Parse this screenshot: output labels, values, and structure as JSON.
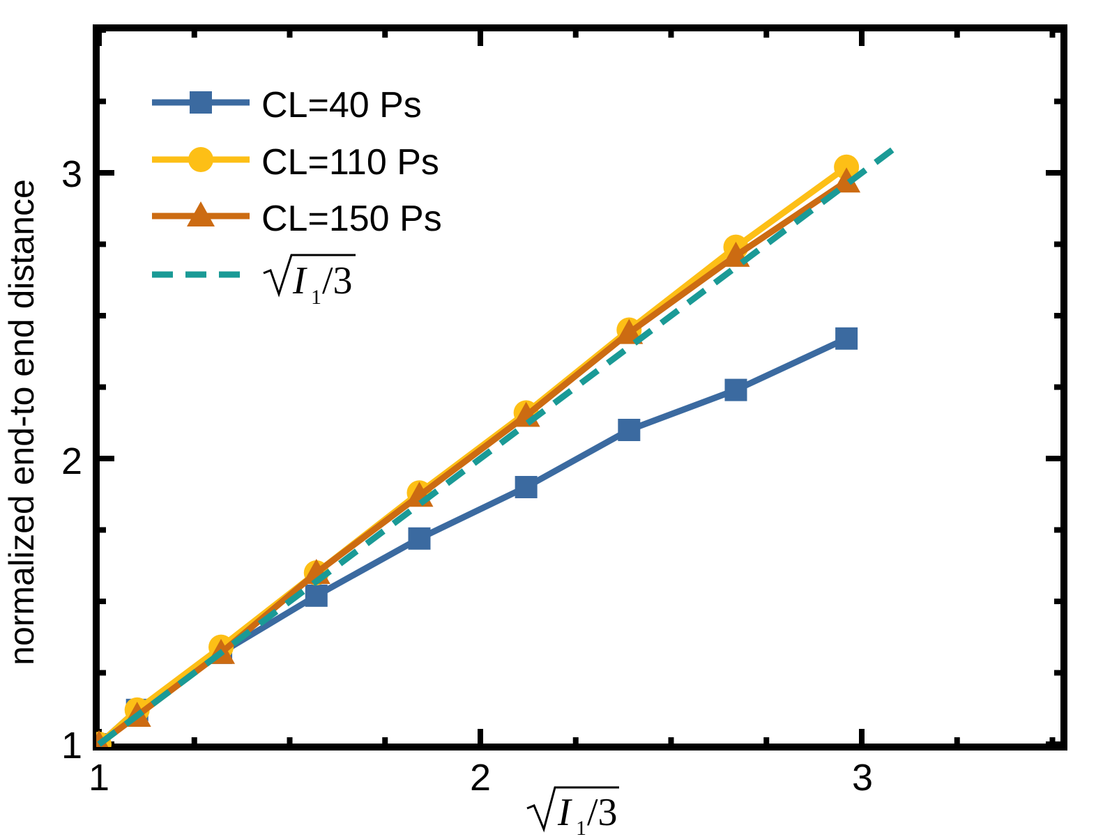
{
  "chart_data": {
    "type": "line",
    "xlabel": "√I₁/3",
    "ylabel": "normalized end-to end distance",
    "xlim": [
      1,
      3.5
    ],
    "ylim": [
      1,
      3.5
    ],
    "x_ticks": [
      "1",
      "2",
      "3"
    ],
    "y_ticks": [
      "1",
      "2",
      "3"
    ],
    "grid": false,
    "legend_position": "top-left",
    "series": [
      {
        "name": "CL=40 Ps",
        "color": "#3b6aa0",
        "marker": "square",
        "line": "solid",
        "x": [
          1.0,
          1.1,
          1.32,
          1.57,
          1.84,
          2.12,
          2.39,
          2.67,
          2.96
        ],
        "y": [
          1.0,
          1.12,
          1.32,
          1.52,
          1.72,
          1.9,
          2.1,
          2.24,
          2.42
        ]
      },
      {
        "name": "CL=110 Ps",
        "color": "#fdbf16",
        "marker": "circle",
        "line": "solid",
        "x": [
          1.0,
          1.1,
          1.32,
          1.57,
          1.84,
          2.12,
          2.39,
          2.67,
          2.96
        ],
        "y": [
          1.0,
          1.12,
          1.34,
          1.6,
          1.88,
          2.16,
          2.45,
          2.74,
          3.02
        ]
      },
      {
        "name": "CL=150 Ps",
        "color": "#cc6b12",
        "marker": "triangle",
        "line": "solid",
        "x": [
          1.0,
          1.1,
          1.32,
          1.57,
          1.84,
          2.12,
          2.39,
          2.67,
          2.96
        ],
        "y": [
          1.0,
          1.1,
          1.32,
          1.6,
          1.87,
          2.15,
          2.44,
          2.71,
          2.97
        ]
      },
      {
        "name": "√I₁/3",
        "color": "#1a9a96",
        "marker": "none",
        "line": "dashed",
        "x": [
          1.0,
          3.08
        ],
        "y": [
          1.0,
          3.08
        ]
      }
    ]
  }
}
